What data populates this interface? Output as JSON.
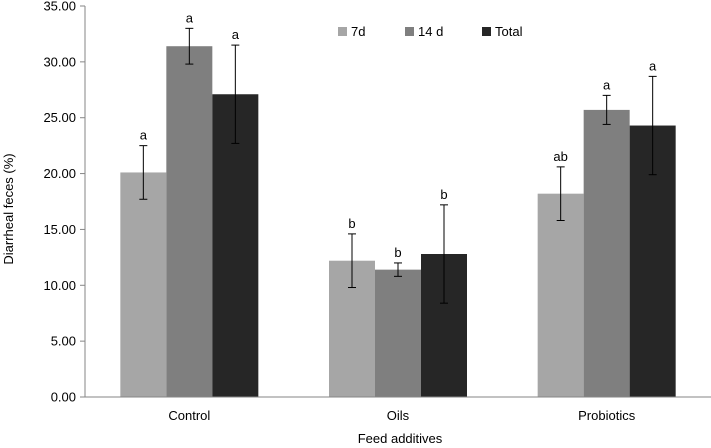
{
  "chart_data": {
    "type": "bar",
    "title": "",
    "xlabel": "Feed additives",
    "ylabel": "Diarrheal feces (%)",
    "ylim": [
      0,
      35
    ],
    "yticks": [
      "0.00",
      "5.00",
      "10.00",
      "15.00",
      "20.00",
      "25.00",
      "30.00",
      "35.00"
    ],
    "categories": [
      "Control",
      "Oils",
      "Probiotics"
    ],
    "legend_position": "top-center",
    "grid": false,
    "series": [
      {
        "name": "7d",
        "color": "#a6a6a6",
        "values": [
          20.1,
          12.2,
          18.2
        ],
        "errors": [
          2.4,
          2.4,
          2.4
        ],
        "labels": [
          "a",
          "b",
          "ab"
        ]
      },
      {
        "name": "14 d",
        "color": "#7f7f7f",
        "values": [
          31.4,
          11.4,
          25.7
        ],
        "errors": [
          1.6,
          0.6,
          1.3
        ],
        "labels": [
          "a",
          "b",
          "a"
        ]
      },
      {
        "name": "Total",
        "color": "#262626",
        "values": [
          27.1,
          12.8,
          24.3
        ],
        "errors": [
          4.4,
          4.4,
          4.4
        ],
        "labels": [
          "a",
          "b",
          "a"
        ]
      }
    ]
  }
}
